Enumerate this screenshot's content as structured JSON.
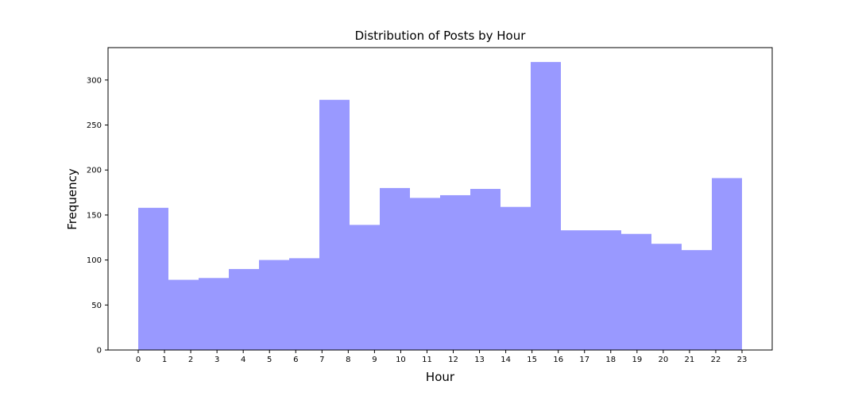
{
  "chart_data": {
    "type": "bar",
    "title": "Distribution of Posts by Hour",
    "xlabel": "Hour",
    "ylabel": "Frequency",
    "xlim": [
      -1.15,
      24.15
    ],
    "ylim": [
      0,
      336
    ],
    "x_ticks": [
      "0",
      "1",
      "2",
      "3",
      "4",
      "5",
      "6",
      "7",
      "8",
      "9",
      "10",
      "11",
      "12",
      "13",
      "14",
      "15",
      "16",
      "17",
      "18",
      "19",
      "20",
      "21",
      "22",
      "23"
    ],
    "y_ticks": [
      0,
      50,
      100,
      150,
      200,
      250,
      300
    ],
    "bins": [
      {
        "start": 0.0,
        "end": 1.15,
        "value": 158
      },
      {
        "start": 1.15,
        "end": 2.3,
        "value": 78
      },
      {
        "start": 2.3,
        "end": 3.45,
        "value": 80
      },
      {
        "start": 3.45,
        "end": 4.6,
        "value": 90
      },
      {
        "start": 4.6,
        "end": 5.75,
        "value": 100
      },
      {
        "start": 5.75,
        "end": 6.9,
        "value": 102
      },
      {
        "start": 6.9,
        "end": 8.05,
        "value": 278
      },
      {
        "start": 8.05,
        "end": 9.2,
        "value": 139
      },
      {
        "start": 9.2,
        "end": 10.35,
        "value": 180
      },
      {
        "start": 10.35,
        "end": 11.5,
        "value": 169
      },
      {
        "start": 11.5,
        "end": 12.65,
        "value": 172
      },
      {
        "start": 12.65,
        "end": 13.8,
        "value": 179
      },
      {
        "start": 13.8,
        "end": 14.95,
        "value": 159
      },
      {
        "start": 14.95,
        "end": 16.1,
        "value": 320
      },
      {
        "start": 16.1,
        "end": 17.25,
        "value": 133
      },
      {
        "start": 17.25,
        "end": 18.4,
        "value": 133
      },
      {
        "start": 18.4,
        "end": 19.55,
        "value": 129
      },
      {
        "start": 19.55,
        "end": 20.7,
        "value": 118
      },
      {
        "start": 20.7,
        "end": 21.85,
        "value": 111
      },
      {
        "start": 21.85,
        "end": 23.0,
        "value": 191
      }
    ],
    "bar_color": "#9999ff",
    "grid": false,
    "legend": "none"
  }
}
